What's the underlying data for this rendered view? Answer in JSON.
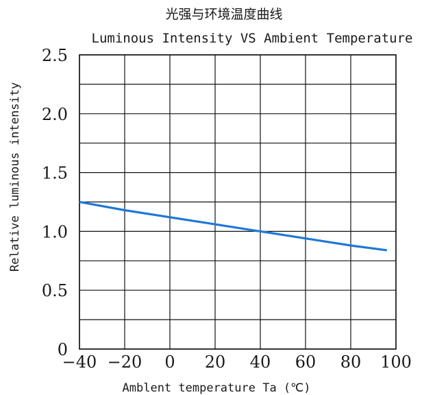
{
  "chart_data": {
    "type": "line",
    "title": "光强与环境温度曲线",
    "subtitle": "Luminous Intensity VS Ambient Temperature",
    "xlabel": "Amblent temperature Ta (℃)",
    "ylabel": "Relative luminous intensity",
    "xlim": [
      -40,
      100
    ],
    "ylim": [
      0,
      2.5
    ],
    "x_ticks": [
      -40,
      -20,
      0,
      20,
      40,
      60,
      80,
      100
    ],
    "x_tick_labels": [
      "−40",
      "−20",
      "0",
      "20",
      "40",
      "60",
      "80",
      "100"
    ],
    "y_ticks": [
      0,
      0.5,
      1.0,
      1.5,
      2.0,
      2.5
    ],
    "y_tick_labels": [
      "0",
      "0.5",
      "1.0",
      "1.5",
      "2.0",
      "2.5"
    ],
    "grid": true,
    "x_grid_step": 20,
    "y_grid_step": 0.25,
    "series": [
      {
        "color": "#1f78d8",
        "x": [
          -40,
          -20,
          0,
          20,
          40,
          60,
          80,
          96
        ],
        "values": [
          1.25,
          1.18,
          1.12,
          1.06,
          1.0,
          0.94,
          0.88,
          0.84
        ]
      }
    ]
  }
}
